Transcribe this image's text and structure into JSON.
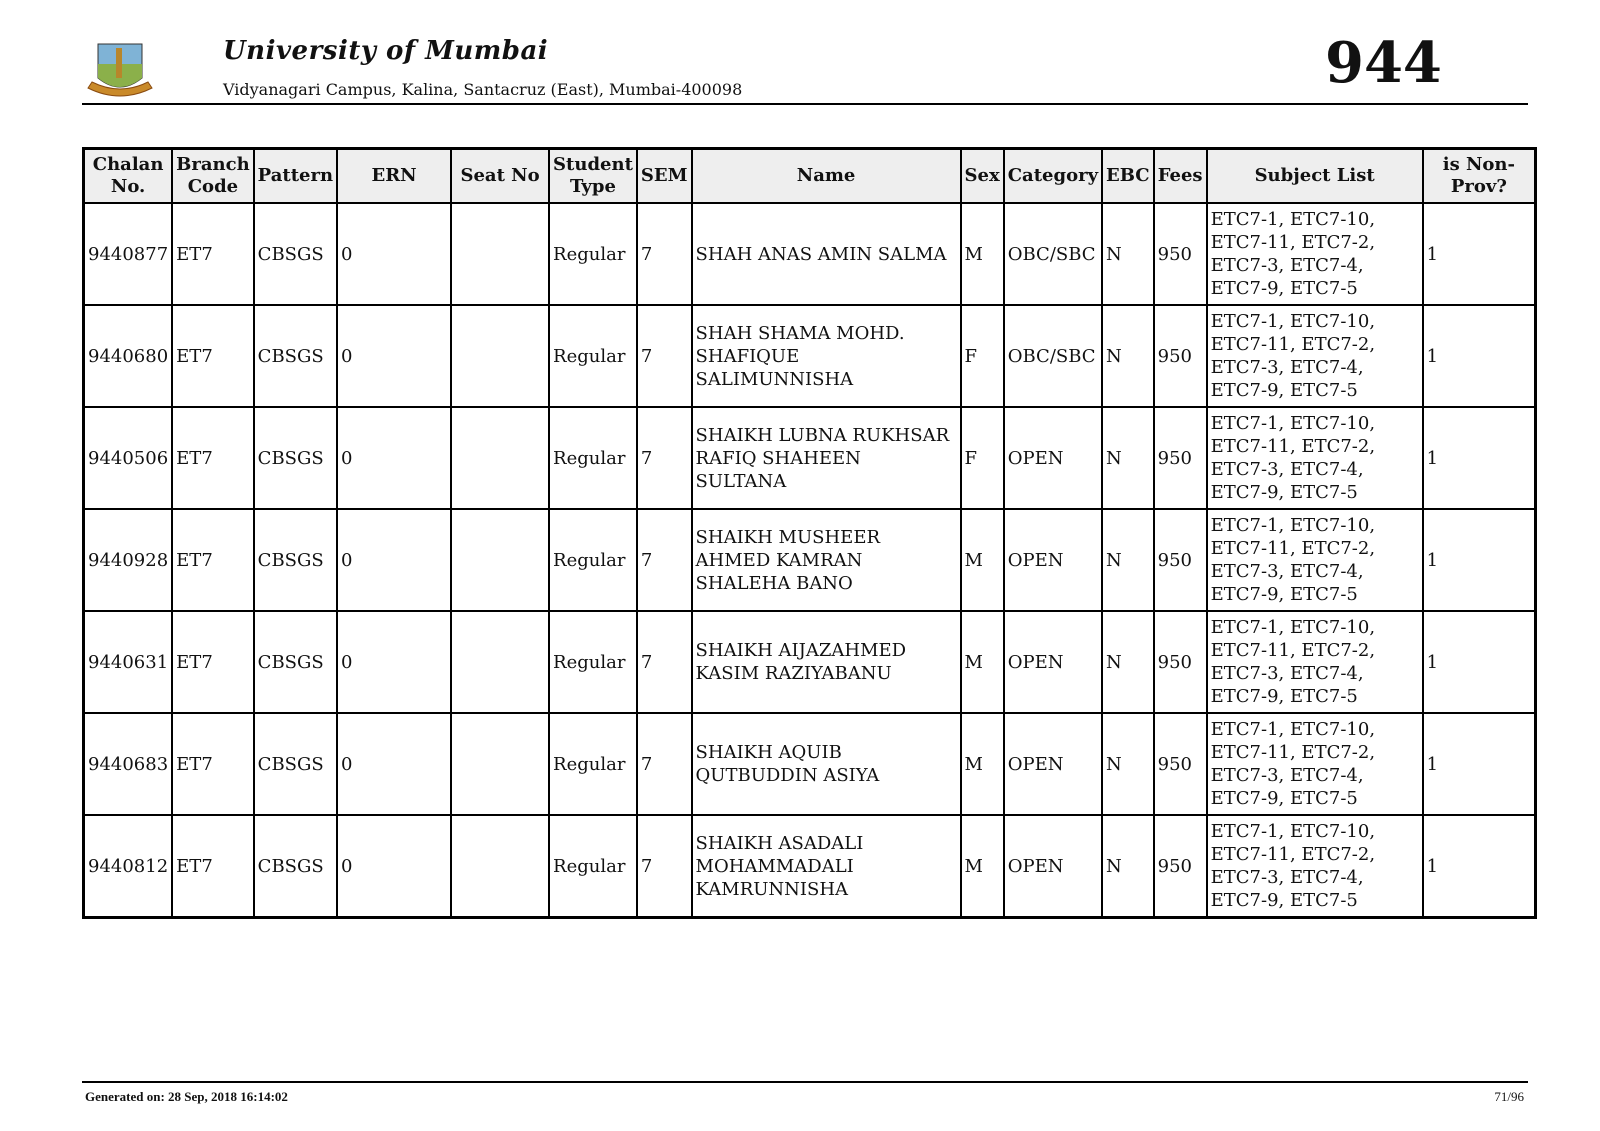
{
  "header": {
    "title": "University of Mumbai",
    "address": "Vidyanagari Campus, Kalina, Santacruz (East), Mumbai-400098",
    "page_code": "944"
  },
  "table": {
    "columns": [
      "Chalan No.",
      "Branch Code",
      "Pattern",
      "ERN",
      "Seat No",
      "Student Type",
      "SEM",
      "Name",
      "Sex",
      "Category",
      "EBC",
      "Fees",
      "Subject List",
      "is Non-Prov?"
    ],
    "rows": [
      [
        "9440877",
        "ET7",
        "CBSGS",
        "0",
        "",
        "Regular",
        "7",
        "SHAH ANAS AMIN SALMA",
        "M",
        "OBC/SBC",
        "N",
        "950",
        "ETC7-1, ETC7-10, ETC7-11, ETC7-2, ETC7-3, ETC7-4, ETC7-9, ETC7-5",
        "1"
      ],
      [
        "9440680",
        "ET7",
        "CBSGS",
        "0",
        "",
        "Regular",
        "7",
        "SHAH SHAMA MOHD. SHAFIQUE SALIMUNNISHA",
        "F",
        "OBC/SBC",
        "N",
        "950",
        "ETC7-1, ETC7-10, ETC7-11, ETC7-2, ETC7-3, ETC7-4, ETC7-9, ETC7-5",
        "1"
      ],
      [
        "9440506",
        "ET7",
        "CBSGS",
        "0",
        "",
        "Regular",
        "7",
        "SHAIKH LUBNA RUKHSAR RAFIQ SHAHEEN SULTANA",
        "F",
        "OPEN",
        "N",
        "950",
        "ETC7-1, ETC7-10, ETC7-11, ETC7-2, ETC7-3, ETC7-4, ETC7-9, ETC7-5",
        "1"
      ],
      [
        "9440928",
        "ET7",
        "CBSGS",
        "0",
        "",
        "Regular",
        "7",
        "SHAIKH MUSHEER AHMED KAMRAN SHALEHA BANO",
        "M",
        "OPEN",
        "N",
        "950",
        "ETC7-1, ETC7-10, ETC7-11, ETC7-2, ETC7-3, ETC7-4, ETC7-9, ETC7-5",
        "1"
      ],
      [
        "9440631",
        "ET7",
        "CBSGS",
        "0",
        "",
        "Regular",
        "7",
        "SHAIKH AIJAZAHMED KASIM RAZIYABANU",
        "M",
        "OPEN",
        "N",
        "950",
        "ETC7-1, ETC7-10, ETC7-11, ETC7-2, ETC7-3, ETC7-4, ETC7-9, ETC7-5",
        "1"
      ],
      [
        "9440683",
        "ET7",
        "CBSGS",
        "0",
        "",
        "Regular",
        "7",
        "SHAIKH AQUIB QUTBUDDIN ASIYA",
        "M",
        "OPEN",
        "N",
        "950",
        "ETC7-1, ETC7-10, ETC7-11, ETC7-2, ETC7-3, ETC7-4, ETC7-9, ETC7-5",
        "1"
      ],
      [
        "9440812",
        "ET7",
        "CBSGS",
        "0",
        "",
        "Regular",
        "7",
        "SHAIKH ASADALI MOHAMMADALI KAMRUNNISHA",
        "M",
        "OPEN",
        "N",
        "950",
        "ETC7-1, ETC7-10, ETC7-11, ETC7-2, ETC7-3, ETC7-4, ETC7-9, ETC7-5",
        "1"
      ]
    ]
  },
  "footer": {
    "generated": "Generated on: 28 Sep, 2018 16:14:02",
    "page": "71/96"
  }
}
